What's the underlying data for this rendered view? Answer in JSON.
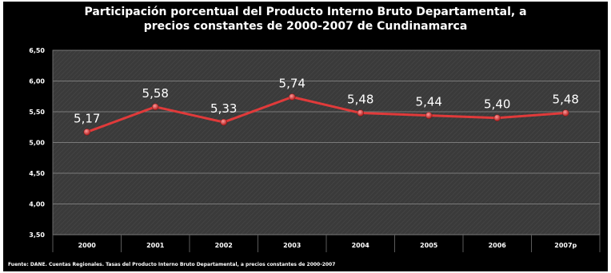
{
  "chart_data": {
    "type": "line",
    "title_lines": [
      "Participación porcentual del Producto Interno Bruto Departamental, a",
      "precios constantes de 2000-2007 de Cundinamarca"
    ],
    "categories": [
      "2000",
      "2001",
      "2002",
      "2003",
      "2004",
      "2005",
      "2006",
      "2007p"
    ],
    "series": [
      {
        "values": [
          5.17,
          5.58,
          5.33,
          5.74,
          5.48,
          5.44,
          5.4,
          5.48
        ]
      }
    ],
    "data_labels": [
      "5,17",
      "5,58",
      "5,33",
      "5,74",
      "5,48",
      "5,44",
      "5,40",
      "5,48"
    ],
    "y_ticks": [
      "6,50",
      "6,00",
      "5,50",
      "5,00",
      "4,50",
      "4,00",
      "3,50"
    ],
    "y_tick_values": [
      6.5,
      6.0,
      5.5,
      5.0,
      4.5,
      4.0,
      3.5
    ],
    "ylim": [
      3.5,
      6.5
    ],
    "grid": true,
    "line_color": "#e03a3a",
    "plot_background": "#3a3a3a",
    "frame_background": "#000000",
    "source": "Fuente: DANE. Cuentas Regionales. Tasas del Producto Interno Bruto Departamental, a precios constantes de 2000-2007"
  }
}
